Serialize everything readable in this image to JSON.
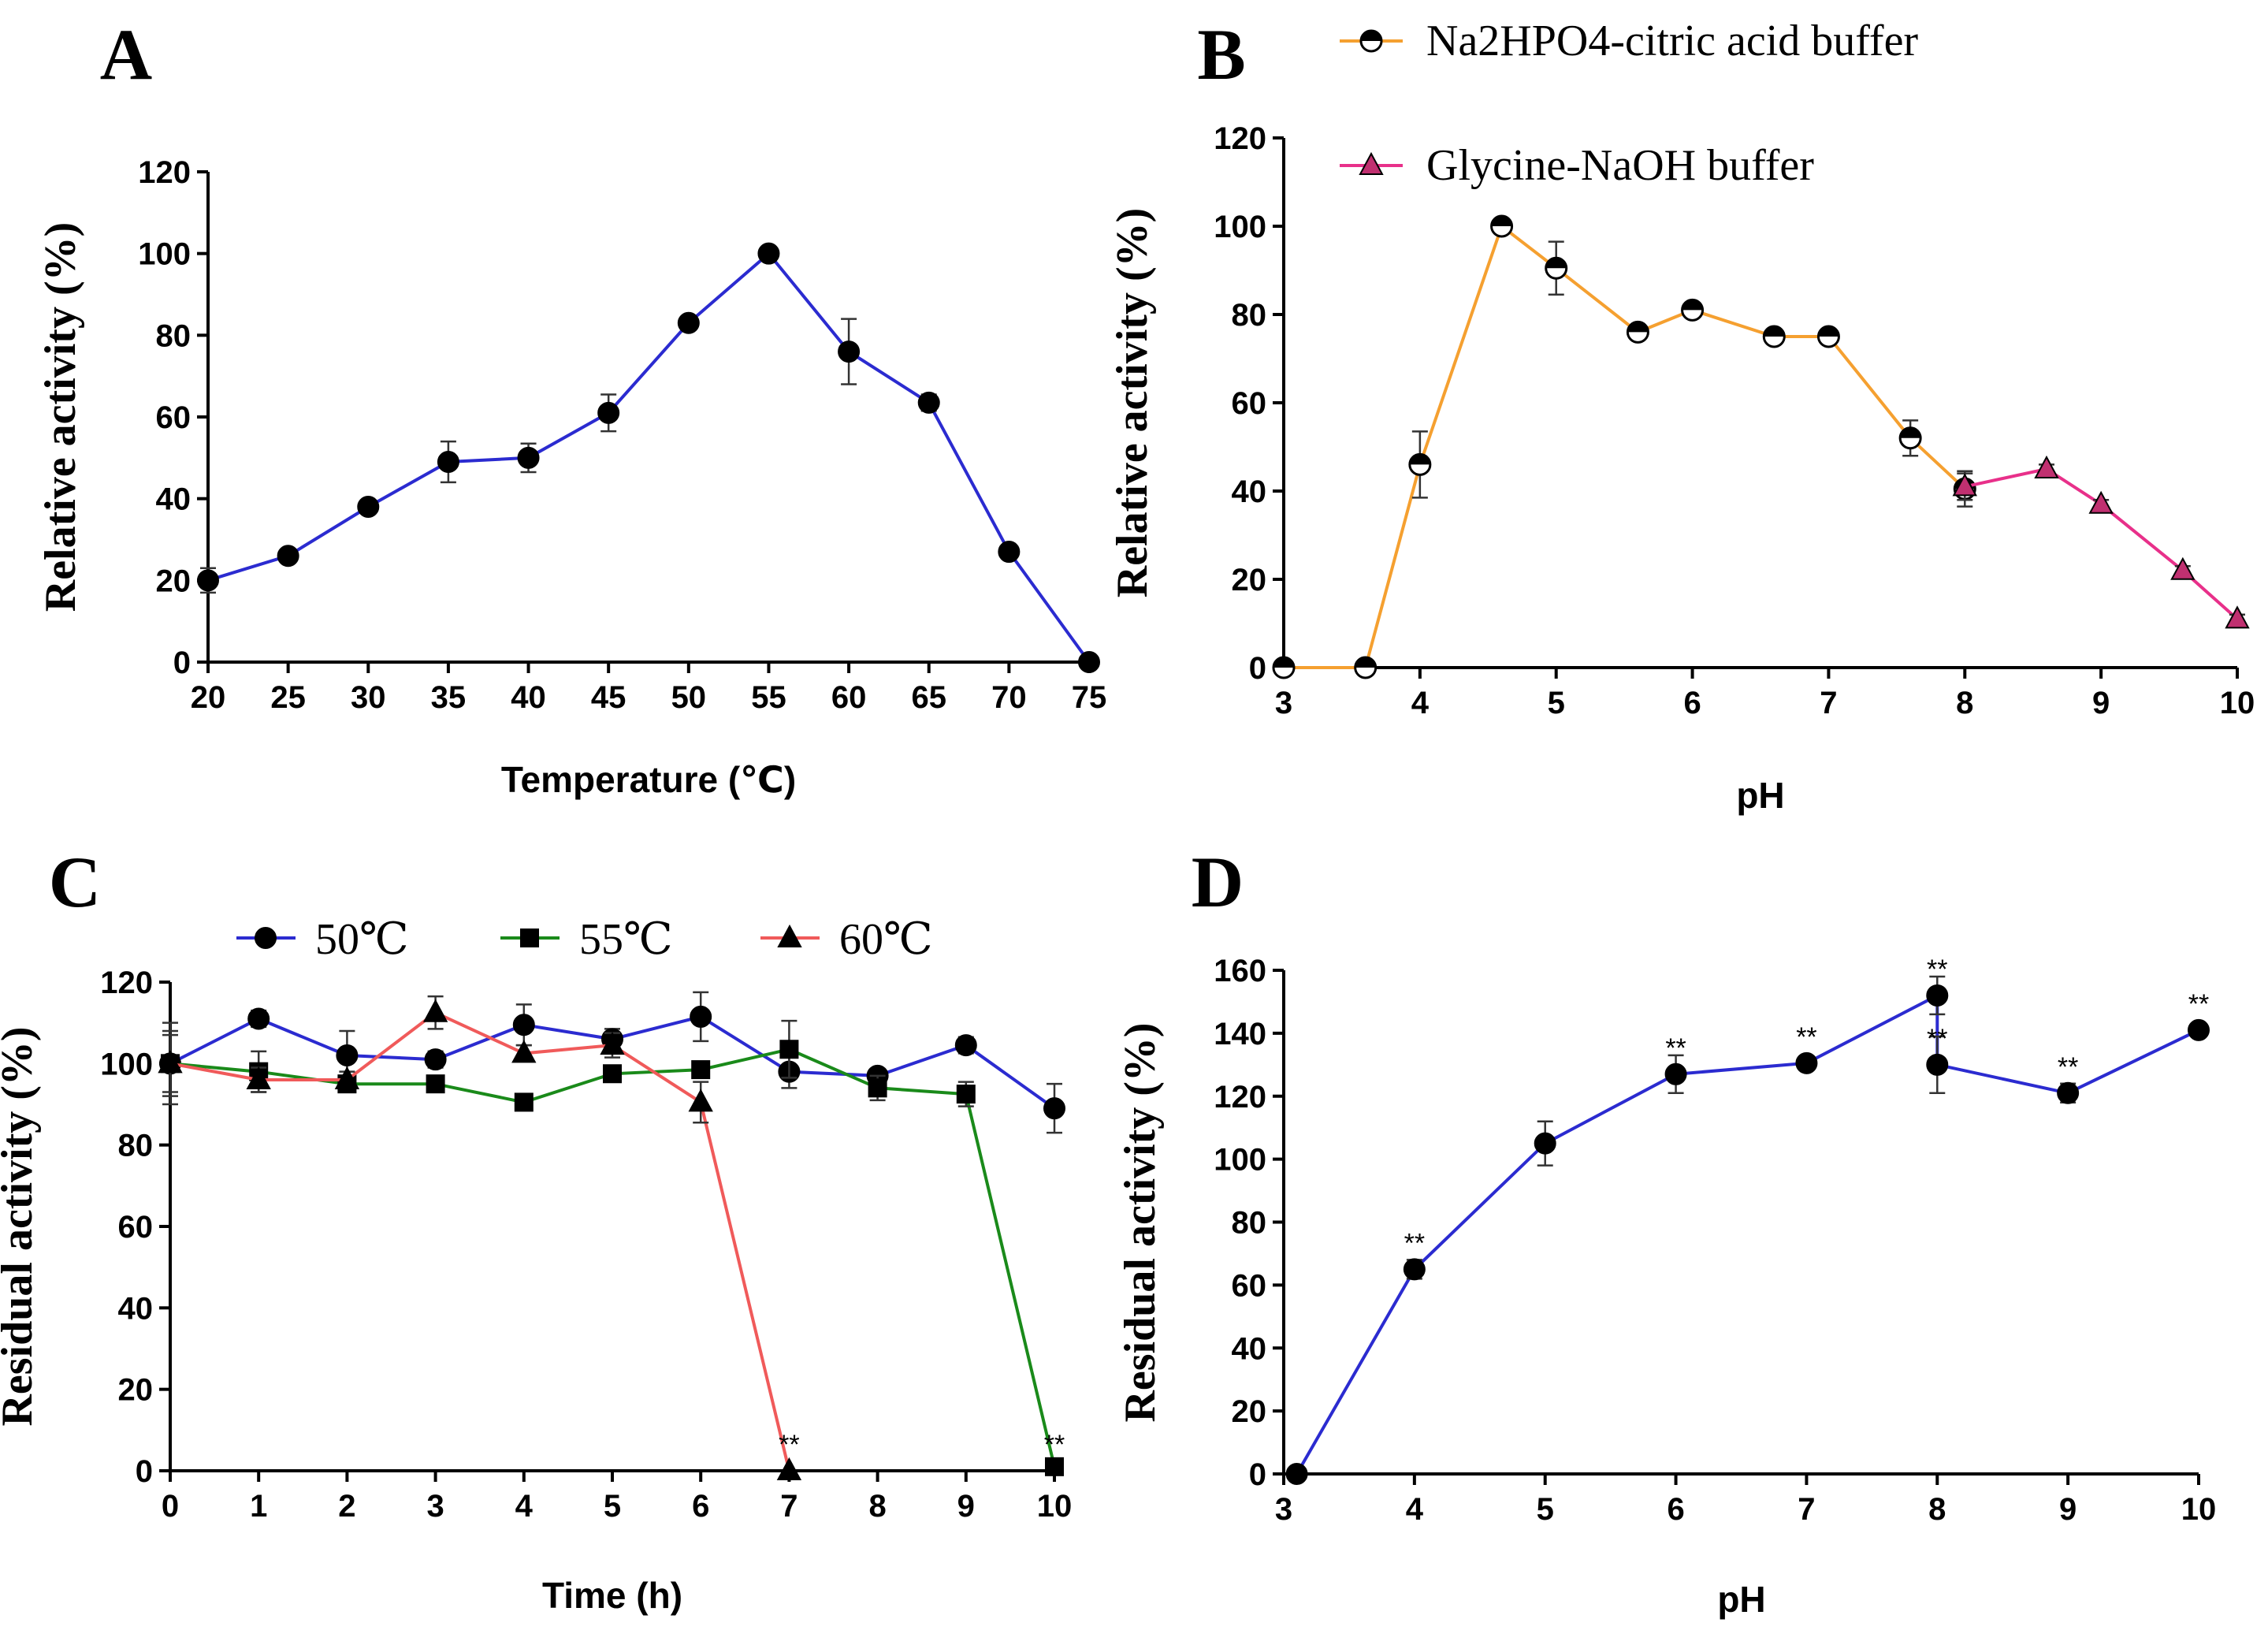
{
  "figure": {
    "colors": {
      "blue": "#2b2bd0",
      "green": "#1a8a1a",
      "red": "#f05a5a",
      "orange": "#f5a030",
      "pink": "#e8308a"
    }
  },
  "chart_data": [
    {
      "panel": "A",
      "type": "line",
      "title": "",
      "xlabel": "Temperature (℃)",
      "ylabel": "Relative activity (%)",
      "xlim": [
        20,
        75
      ],
      "ylim": [
        0,
        120
      ],
      "xticks": [
        "20",
        "25",
        "30",
        "35",
        "40",
        "45",
        "50",
        "55",
        "60",
        "65",
        "70",
        "75"
      ],
      "yticks": [
        "0",
        "20",
        "40",
        "60",
        "80",
        "100",
        "120"
      ],
      "series": [
        {
          "name": "Relative activity",
          "color": "#2b2bd0",
          "marker": "circle",
          "x": [
            20,
            25,
            30,
            35,
            40,
            45,
            50,
            55,
            60,
            65,
            70,
            75
          ],
          "y": [
            20,
            26,
            38,
            49,
            50,
            61,
            83,
            100,
            76,
            63.5,
            27,
            0
          ],
          "err": [
            3,
            1,
            1,
            5,
            3.5,
            4.5,
            1,
            1,
            8,
            2,
            1,
            0
          ]
        }
      ]
    },
    {
      "panel": "B",
      "type": "line",
      "title": "",
      "xlabel": "pH",
      "ylabel": "Relative activity (%)",
      "xlim": [
        3,
        10
      ],
      "ylim": [
        0,
        120
      ],
      "xticks": [
        "3",
        "4",
        "5",
        "6",
        "7",
        "8",
        "9",
        "10"
      ],
      "yticks": [
        "0",
        "20",
        "40",
        "60",
        "80",
        "100",
        "120"
      ],
      "legend": [
        "Na2HPO4-citric acid buffer",
        "Glycine-NaOH buffer"
      ],
      "legend_position": "top",
      "series": [
        {
          "name": "Na2HPO4-citric acid buffer",
          "color": "#f5a030",
          "marker": "half-circle",
          "x": [
            3,
            3.6,
            4,
            4.6,
            5,
            5.6,
            6,
            6.6,
            7,
            7.6,
            8
          ],
          "y": [
            0,
            0,
            46,
            100,
            90.5,
            76,
            81,
            75,
            75,
            52,
            40.5
          ],
          "err": [
            0,
            0,
            7.5,
            1,
            6,
            1,
            1,
            1,
            1,
            4,
            4
          ]
        },
        {
          "name": "Glycine-NaOH buffer",
          "color": "#e8308a",
          "marker": "triangle",
          "x": [
            8,
            8.6,
            9,
            9.6,
            10
          ],
          "y": [
            41,
            45,
            37,
            22,
            11
          ],
          "err": [
            3,
            1,
            1,
            1,
            1
          ]
        }
      ]
    },
    {
      "panel": "C",
      "type": "line",
      "title": "",
      "xlabel": "Time (h)",
      "ylabel": "Residual activity (%)",
      "xlim": [
        0,
        10
      ],
      "ylim": [
        0,
        120
      ],
      "xticks": [
        "0",
        "1",
        "2",
        "3",
        "4",
        "5",
        "6",
        "7",
        "8",
        "9",
        "10"
      ],
      "yticks": [
        "0",
        "20",
        "40",
        "60",
        "80",
        "100",
        "120"
      ],
      "legend": [
        "50℃",
        "55℃",
        "60℃"
      ],
      "legend_position": "top",
      "annotations": [
        {
          "x": 7,
          "y": 0,
          "text": "**"
        },
        {
          "x": 10,
          "y": 0,
          "text": "**"
        }
      ],
      "series": [
        {
          "name": "50℃",
          "color": "#2b2bd0",
          "marker": "circle",
          "x": [
            0,
            1,
            2,
            3,
            4,
            5,
            6,
            7,
            8,
            9,
            10
          ],
          "y": [
            100,
            111,
            102,
            101,
            109.5,
            106,
            111.5,
            98,
            97,
            104.5,
            89
          ],
          "err": [
            10,
            2,
            6,
            2,
            5,
            2.5,
            6,
            4,
            1.5,
            2,
            6
          ]
        },
        {
          "name": "55℃",
          "color": "#1a8a1a",
          "marker": "square",
          "x": [
            0,
            1,
            2,
            3,
            4,
            5,
            6,
            7,
            8,
            9,
            10
          ],
          "y": [
            100,
            98,
            95,
            95,
            90.5,
            97.5,
            98.5,
            103.5,
            94,
            92.5,
            1
          ],
          "err": [
            8,
            5,
            1,
            1,
            1,
            1,
            1,
            7,
            3,
            3,
            0
          ]
        },
        {
          "name": "60℃",
          "color": "#f05a5a",
          "marker": "triangle",
          "x": [
            0,
            1,
            2,
            3,
            4,
            5,
            6,
            7
          ],
          "y": [
            100,
            96,
            96,
            112.5,
            102.5,
            104.5,
            90.5,
            0
          ],
          "err": [
            7,
            3,
            2,
            4,
            2,
            3,
            5,
            0
          ]
        }
      ]
    },
    {
      "panel": "D",
      "type": "line",
      "title": "",
      "xlabel": "pH",
      "ylabel": "Residual activity (%)",
      "xlim": [
        3,
        10
      ],
      "ylim": [
        0,
        160
      ],
      "xticks": [
        "3",
        "4",
        "5",
        "6",
        "7",
        "8",
        "9",
        "10"
      ],
      "yticks": [
        "0",
        "20",
        "40",
        "60",
        "80",
        "100",
        "120",
        "140",
        "160"
      ],
      "annotations": [
        {
          "x": 4,
          "y": 65,
          "text": "**"
        },
        {
          "x": 6,
          "y": 127,
          "text": "**"
        },
        {
          "x": 7,
          "y": 130.5,
          "text": "**"
        },
        {
          "x": 8,
          "y": 152,
          "text": "**"
        },
        {
          "x": 8,
          "y": 130,
          "text": "**"
        },
        {
          "x": 9,
          "y": 121,
          "text": "**"
        },
        {
          "x": 10,
          "y": 141,
          "text": "**"
        }
      ],
      "series": [
        {
          "name": "Residual activity",
          "color": "#2b2bd0",
          "marker": "circle",
          "x": [
            3.1,
            4,
            5,
            6,
            7,
            8,
            8,
            9,
            10
          ],
          "y": [
            0,
            65,
            105,
            127,
            130.5,
            152,
            130,
            121,
            141
          ],
          "err": [
            0,
            3,
            7,
            6,
            2,
            6,
            9,
            3,
            1
          ]
        }
      ]
    }
  ]
}
